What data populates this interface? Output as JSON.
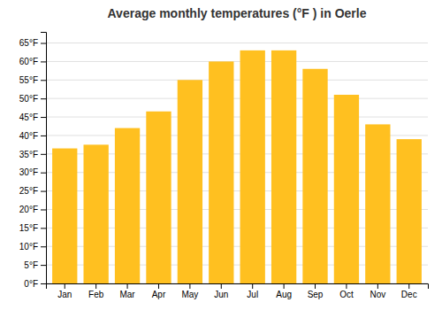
{
  "chart_data": {
    "type": "bar",
    "title": "Average monthly temperatures (°F ) in Oerle",
    "categories": [
      "Jan",
      "Feb",
      "Mar",
      "Apr",
      "May",
      "Jun",
      "Jul",
      "Aug",
      "Sep",
      "Oct",
      "Nov",
      "Dec"
    ],
    "values": [
      36.5,
      37.5,
      42,
      46.5,
      55,
      60,
      63,
      63,
      58,
      51,
      43,
      39
    ],
    "color": "#FFC020",
    "ylim": [
      0,
      68
    ],
    "yticks": [
      {
        "value": 0,
        "label": "0°F"
      },
      {
        "value": 5,
        "label": "5°F"
      },
      {
        "value": 10,
        "label": "10°F"
      },
      {
        "value": 15,
        "label": "15°F"
      },
      {
        "value": 20,
        "label": "20°F"
      },
      {
        "value": 25,
        "label": "25°F"
      },
      {
        "value": 30,
        "label": "30°F"
      },
      {
        "value": 35,
        "label": "35°F"
      },
      {
        "value": 40,
        "label": "40°F"
      },
      {
        "value": 45,
        "label": "45°F"
      },
      {
        "value": 50,
        "label": "50°F"
      },
      {
        "value": 55,
        "label": "55°F"
      },
      {
        "value": 60,
        "label": "60°F"
      },
      {
        "value": 65,
        "label": "65°F"
      }
    ],
    "grid": true
  }
}
